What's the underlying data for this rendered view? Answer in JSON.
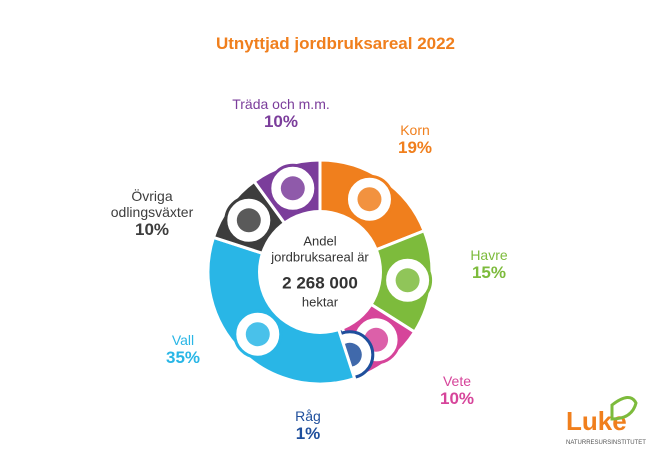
{
  "chart_data": {
    "type": "donut",
    "title": "Utnyttjad jordbruksareal 2022",
    "center_text": [
      "Andel",
      "jordbruksareal är",
      "2 268 000",
      "hektar"
    ],
    "categories": [
      "Korn",
      "Havre",
      "Vete",
      "Råg",
      "Vall",
      "Övriga odlingsväxter",
      "Träda och m.m."
    ],
    "values": [
      19,
      15,
      10,
      1,
      35,
      10,
      10
    ],
    "value_labels": [
      "19%",
      "15%",
      "10%",
      "1%",
      "35%",
      "10%",
      "10%"
    ],
    "colors": [
      "#f07f1d",
      "#7dbb3c",
      "#d6449a",
      "#1f4f9c",
      "#29b6e6",
      "#3d3d3d",
      "#7b3d9b"
    ],
    "logo": {
      "name": "Luke",
      "subtitle": "NATURRESURSINSTITUTET"
    }
  }
}
